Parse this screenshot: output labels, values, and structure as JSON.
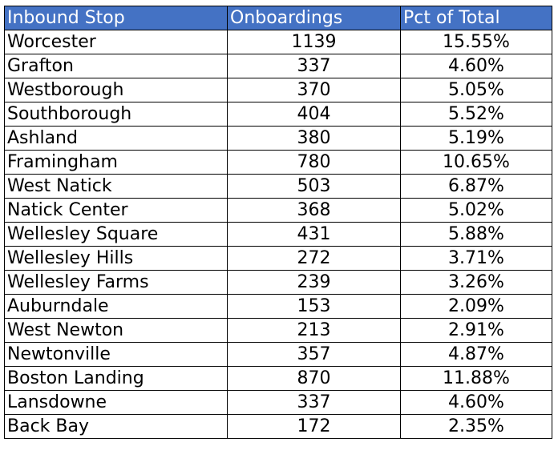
{
  "colors": {
    "header_bg": "#4472c4",
    "header_text": "#ffffff",
    "grid": "#000000"
  },
  "chart_data": {
    "type": "table",
    "columns": [
      "Inbound Stop",
      "Onboardings",
      "Pct of Total"
    ],
    "rows": [
      [
        "Worcester",
        "1139",
        "15.55%"
      ],
      [
        "Grafton",
        "337",
        "4.60%"
      ],
      [
        "Westborough",
        "370",
        "5.05%"
      ],
      [
        "Southborough",
        "404",
        "5.52%"
      ],
      [
        "Ashland",
        "380",
        "5.19%"
      ],
      [
        "Framingham",
        "780",
        "10.65%"
      ],
      [
        "West Natick",
        "503",
        "6.87%"
      ],
      [
        "Natick Center",
        "368",
        "5.02%"
      ],
      [
        "Wellesley Square",
        "431",
        "5.88%"
      ],
      [
        "Wellesley Hills",
        "272",
        "3.71%"
      ],
      [
        "Wellesley Farms",
        "239",
        "3.26%"
      ],
      [
        "Auburndale",
        "153",
        "2.09%"
      ],
      [
        "West Newton",
        "213",
        "2.91%"
      ],
      [
        "Newtonville",
        "357",
        "4.87%"
      ],
      [
        "Boston Landing",
        "870",
        "11.88%"
      ],
      [
        "Lansdowne",
        "337",
        "4.60%"
      ],
      [
        "Back Bay",
        "172",
        "2.35%"
      ]
    ]
  }
}
